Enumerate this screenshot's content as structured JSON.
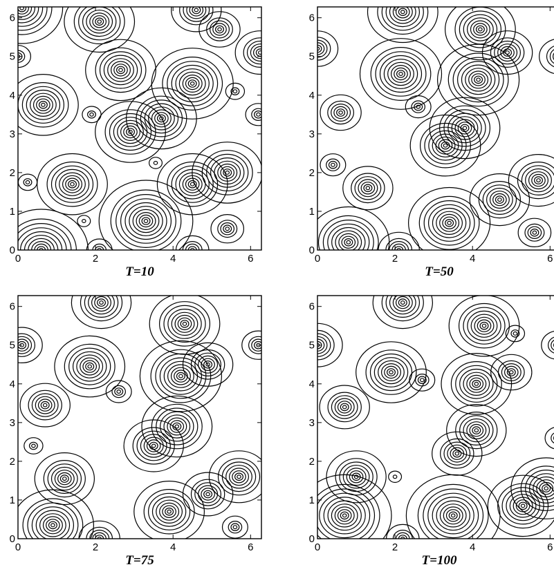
{
  "chart_data": [
    {
      "type": "contour",
      "title": "T=10",
      "xlim": [
        0,
        6.28
      ],
      "ylim": [
        0,
        6.28
      ],
      "xticks": [
        "0",
        "2",
        "4",
        "6"
      ],
      "yticks": [
        "0",
        "1",
        "2",
        "3",
        "4",
        "5",
        "6"
      ],
      "grid": false,
      "peaks": [
        {
          "x": 0.1,
          "y": 6.25,
          "rings": 9
        },
        {
          "x": 2.1,
          "y": 5.9,
          "rings": 8
        },
        {
          "x": 4.6,
          "y": 6.2,
          "rings": 6
        },
        {
          "x": 5.2,
          "y": 5.7,
          "rings": 5
        },
        {
          "x": 6.25,
          "y": 5.1,
          "rings": 6
        },
        {
          "x": 0.0,
          "y": 5.0,
          "rings": 3
        },
        {
          "x": 2.65,
          "y": 4.65,
          "rings": 8
        },
        {
          "x": 4.5,
          "y": 4.3,
          "rings": 9
        },
        {
          "x": 5.6,
          "y": 4.1,
          "rings": 2
        },
        {
          "x": 0.65,
          "y": 3.75,
          "rings": 8
        },
        {
          "x": 1.9,
          "y": 3.5,
          "rings": 2
        },
        {
          "x": 2.9,
          "y": 3.05,
          "rings": 8
        },
        {
          "x": 3.7,
          "y": 3.4,
          "rings": 8
        },
        {
          "x": 6.2,
          "y": 3.5,
          "rings": 3
        },
        {
          "x": 3.55,
          "y": 2.25,
          "rings": 1
        },
        {
          "x": 0.25,
          "y": 1.75,
          "rings": 2
        },
        {
          "x": 1.4,
          "y": 1.7,
          "rings": 8
        },
        {
          "x": 4.5,
          "y": 1.7,
          "rings": 8
        },
        {
          "x": 5.4,
          "y": 2.0,
          "rings": 8
        },
        {
          "x": 3.3,
          "y": 0.75,
          "rings": 10
        },
        {
          "x": 1.7,
          "y": 0.75,
          "rings": 1
        },
        {
          "x": 5.4,
          "y": 0.55,
          "rings": 4
        },
        {
          "x": 0.6,
          "y": 0.0,
          "rings": 10
        },
        {
          "x": 2.1,
          "y": 0.0,
          "rings": 3
        },
        {
          "x": 4.5,
          "y": 0.0,
          "rings": 4
        }
      ]
    },
    {
      "type": "contour",
      "title": "T=50",
      "xlim": [
        0,
        6.28
      ],
      "ylim": [
        0,
        6.28
      ],
      "xticks": [
        "0",
        "2",
        "4",
        "6"
      ],
      "yticks": [
        "0",
        "1",
        "2",
        "3",
        "4",
        "5",
        "6"
      ],
      "grid": false,
      "peaks": [
        {
          "x": 2.2,
          "y": 6.15,
          "rings": 8
        },
        {
          "x": 4.2,
          "y": 5.7,
          "rings": 8
        },
        {
          "x": 4.9,
          "y": 5.1,
          "rings": 6
        },
        {
          "x": 6.25,
          "y": 5.0,
          "rings": 5
        },
        {
          "x": 0.0,
          "y": 5.2,
          "rings": 5
        },
        {
          "x": 2.15,
          "y": 4.55,
          "rings": 9
        },
        {
          "x": 2.6,
          "y": 3.7,
          "rings": 3
        },
        {
          "x": 4.15,
          "y": 4.4,
          "rings": 9
        },
        {
          "x": 0.6,
          "y": 3.55,
          "rings": 5
        },
        {
          "x": 3.3,
          "y": 2.7,
          "rings": 8
        },
        {
          "x": 3.8,
          "y": 3.15,
          "rings": 8
        },
        {
          "x": 0.4,
          "y": 2.2,
          "rings": 3
        },
        {
          "x": 1.3,
          "y": 1.6,
          "rings": 6
        },
        {
          "x": 4.7,
          "y": 1.3,
          "rings": 7
        },
        {
          "x": 5.7,
          "y": 1.8,
          "rings": 7
        },
        {
          "x": 5.6,
          "y": 0.45,
          "rings": 4
        },
        {
          "x": 3.4,
          "y": 0.7,
          "rings": 9
        },
        {
          "x": 0.8,
          "y": 0.2,
          "rings": 9
        },
        {
          "x": 2.1,
          "y": 0.0,
          "rings": 5
        }
      ]
    },
    {
      "type": "contour",
      "title": "T=75",
      "xlim": [
        0,
        6.28
      ],
      "ylim": [
        0,
        6.28
      ],
      "xticks": [
        "0",
        "2",
        "4",
        "6"
      ],
      "yticks": [
        "0",
        "1",
        "2",
        "3",
        "4",
        "5",
        "6"
      ],
      "grid": false,
      "peaks": [
        {
          "x": 2.15,
          "y": 6.1,
          "rings": 7
        },
        {
          "x": 4.3,
          "y": 5.55,
          "rings": 8
        },
        {
          "x": 4.9,
          "y": 4.5,
          "rings": 6
        },
        {
          "x": 6.2,
          "y": 5.0,
          "rings": 4
        },
        {
          "x": 0.1,
          "y": 5.0,
          "rings": 5
        },
        {
          "x": 1.85,
          "y": 4.45,
          "rings": 8
        },
        {
          "x": 2.6,
          "y": 3.8,
          "rings": 3
        },
        {
          "x": 4.2,
          "y": 4.2,
          "rings": 9
        },
        {
          "x": 0.7,
          "y": 3.45,
          "rings": 6
        },
        {
          "x": 0.4,
          "y": 2.4,
          "rings": 2
        },
        {
          "x": 3.5,
          "y": 2.4,
          "rings": 7
        },
        {
          "x": 4.1,
          "y": 2.9,
          "rings": 8
        },
        {
          "x": 1.2,
          "y": 1.55,
          "rings": 7
        },
        {
          "x": 4.9,
          "y": 1.15,
          "rings": 6
        },
        {
          "x": 5.7,
          "y": 1.6,
          "rings": 7
        },
        {
          "x": 5.6,
          "y": 0.3,
          "rings": 3
        },
        {
          "x": 3.9,
          "y": 0.7,
          "rings": 8
        },
        {
          "x": 0.9,
          "y": 0.35,
          "rings": 9
        },
        {
          "x": 2.1,
          "y": 0.0,
          "rings": 5
        }
      ]
    },
    {
      "type": "contour",
      "title": "T=100",
      "xlim": [
        0,
        6.28
      ],
      "ylim": [
        0,
        6.28
      ],
      "xticks": [
        "0",
        "2",
        "4",
        "6"
      ],
      "yticks": [
        "0",
        "1",
        "2",
        "3",
        "4",
        "5",
        "6"
      ],
      "grid": false,
      "peaks": [
        {
          "x": 2.2,
          "y": 6.1,
          "rings": 7
        },
        {
          "x": 4.3,
          "y": 5.5,
          "rings": 8
        },
        {
          "x": 5.1,
          "y": 5.3,
          "rings": 2
        },
        {
          "x": 6.2,
          "y": 5.0,
          "rings": 4
        },
        {
          "x": 0.0,
          "y": 5.0,
          "rings": 6
        },
        {
          "x": 1.9,
          "y": 4.3,
          "rings": 8
        },
        {
          "x": 2.7,
          "y": 4.1,
          "rings": 3
        },
        {
          "x": 4.1,
          "y": 4.0,
          "rings": 8
        },
        {
          "x": 5.0,
          "y": 4.3,
          "rings": 5
        },
        {
          "x": 0.7,
          "y": 3.4,
          "rings": 6
        },
        {
          "x": 6.2,
          "y": 2.6,
          "rings": 3
        },
        {
          "x": 3.6,
          "y": 2.2,
          "rings": 6
        },
        {
          "x": 4.1,
          "y": 2.8,
          "rings": 7
        },
        {
          "x": 2.0,
          "y": 1.6,
          "rings": 1
        },
        {
          "x": 1.0,
          "y": 1.6,
          "rings": 7
        },
        {
          "x": 5.3,
          "y": 0.85,
          "rings": 8
        },
        {
          "x": 5.9,
          "y": 1.3,
          "rings": 8
        },
        {
          "x": 3.5,
          "y": 0.6,
          "rings": 10
        },
        {
          "x": 0.7,
          "y": 0.6,
          "rings": 10
        },
        {
          "x": 2.2,
          "y": 0.0,
          "rings": 4
        }
      ]
    }
  ]
}
